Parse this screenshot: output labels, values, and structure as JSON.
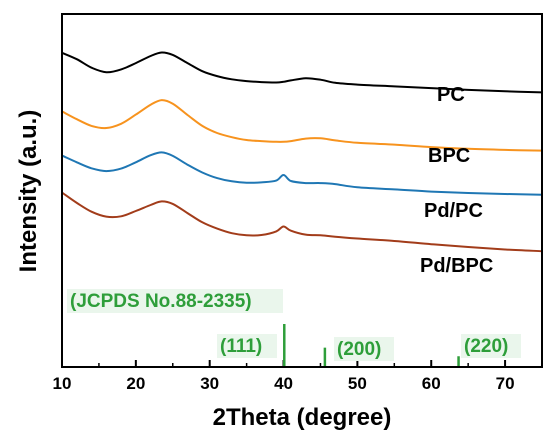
{
  "chart_data": {
    "type": "line",
    "xlabel": "2Theta (degree)",
    "ylabel": "Intensity (a.u.)",
    "xlim": [
      10,
      75
    ],
    "x_ticks": [
      10,
      20,
      30,
      40,
      50,
      60,
      70
    ],
    "y_ticks_shown": false,
    "grid": false,
    "legend": "inline labels to the right of each curve",
    "x": [
      10,
      12,
      14,
      16,
      18,
      20,
      22,
      23.5,
      25,
      27,
      29,
      31,
      33,
      35,
      37,
      39,
      40,
      41,
      43,
      45,
      47,
      50,
      55,
      60,
      65,
      70,
      75
    ],
    "series": [
      {
        "name": "PC",
        "color": "#000000",
        "values": [
          0.89,
          0.872,
          0.848,
          0.835,
          0.843,
          0.861,
          0.881,
          0.891,
          0.884,
          0.861,
          0.838,
          0.824,
          0.815,
          0.81,
          0.807,
          0.806,
          0.808,
          0.812,
          0.818,
          0.814,
          0.805,
          0.8,
          0.795,
          0.79,
          0.785,
          0.781,
          0.778
        ]
      },
      {
        "name": "BPC",
        "color": "#f7931e",
        "values": [
          0.724,
          0.702,
          0.683,
          0.677,
          0.689,
          0.715,
          0.743,
          0.756,
          0.746,
          0.714,
          0.683,
          0.663,
          0.651,
          0.643,
          0.64,
          0.638,
          0.638,
          0.64,
          0.647,
          0.648,
          0.642,
          0.635,
          0.63,
          0.623,
          0.618,
          0.615,
          0.613
        ]
      },
      {
        "name": "Pd/PC",
        "color": "#1f77b4",
        "values": [
          0.599,
          0.58,
          0.563,
          0.555,
          0.562,
          0.58,
          0.6,
          0.608,
          0.598,
          0.573,
          0.551,
          0.535,
          0.526,
          0.522,
          0.523,
          0.528,
          0.544,
          0.527,
          0.521,
          0.521,
          0.518,
          0.509,
          0.503,
          0.497,
          0.493,
          0.49,
          0.488
        ]
      },
      {
        "name": "Pd/BPC",
        "color": "#a23c1a",
        "values": [
          0.494,
          0.465,
          0.44,
          0.426,
          0.427,
          0.442,
          0.459,
          0.469,
          0.462,
          0.436,
          0.41,
          0.392,
          0.379,
          0.373,
          0.374,
          0.384,
          0.398,
          0.386,
          0.375,
          0.373,
          0.369,
          0.364,
          0.357,
          0.348,
          0.34,
          0.333,
          0.328
        ]
      }
    ],
    "reference": {
      "label": "(JCPDS No.88-2335)",
      "color": "#2e9e3a",
      "highlight": "#eaf6ec",
      "peaks": [
        {
          "x": 40.1,
          "intensity": 100,
          "label": "(111)"
        },
        {
          "x": 45.6,
          "intensity": 45,
          "label": "(200)"
        },
        {
          "x": 63.7,
          "intensity": 25,
          "label": "(220)"
        }
      ]
    }
  }
}
